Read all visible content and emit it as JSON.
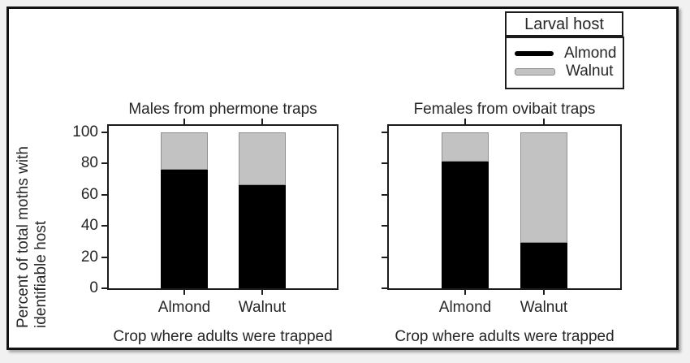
{
  "figure": {
    "y_axis_label": "Percent of total moths with\nidentifiable host"
  },
  "legend": {
    "title": "Larval host",
    "items": [
      {
        "label": "Almond",
        "color": "#000000"
      },
      {
        "label": "Walnut",
        "color": "#c2c2c2"
      }
    ]
  },
  "chart_data": [
    {
      "type": "bar",
      "stacked": true,
      "title": "Males from phermone traps",
      "categories": [
        "Almond",
        "Walnut"
      ],
      "series": [
        {
          "name": "Almond",
          "color": "#000000",
          "values": [
            76,
            66
          ]
        },
        {
          "name": "Walnut",
          "color": "#c2c2c2",
          "values": [
            24,
            34
          ]
        }
      ],
      "xlabel": "Crop where adults were trapped",
      "ylabel": "Percent of total moths with identifiable host",
      "ylim": [
        0,
        100
      ],
      "yticks": [
        0,
        20,
        40,
        60,
        80,
        100
      ],
      "ytick_labels_visible": true,
      "grid": false,
      "legend_position": "figure-top-right"
    },
    {
      "type": "bar",
      "stacked": true,
      "title": "Females from ovibait traps",
      "categories": [
        "Almond",
        "Walnut"
      ],
      "series": [
        {
          "name": "Almond",
          "color": "#000000",
          "values": [
            81,
            29
          ]
        },
        {
          "name": "Walnut",
          "color": "#c2c2c2",
          "values": [
            19,
            71
          ]
        }
      ],
      "xlabel": "Crop where adults were trapped",
      "ylabel": "Percent of total moths with identifiable host",
      "ylim": [
        0,
        100
      ],
      "yticks": [
        0,
        20,
        40,
        60,
        80,
        100
      ],
      "ytick_labels_visible": false,
      "grid": false,
      "legend_position": "figure-top-right"
    }
  ]
}
